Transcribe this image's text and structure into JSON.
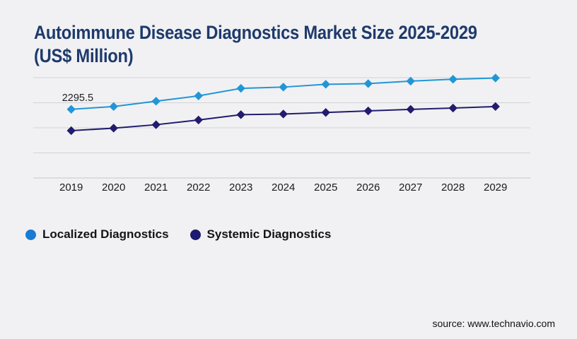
{
  "page": {
    "title": "Autoimmune Disease Diagnostics Market Size 2025-2029 (US$ Million)",
    "title_lines": [
      "Autoimmune Disease Diagnostics Market Size 2025-2029",
      "(US$ Million)"
    ],
    "source": "source: www.technavio.com"
  },
  "colors": {
    "background": "#f1f1f3",
    "title": "#1e3a6c",
    "gridline": "#d2d3d6",
    "axis_line": "#c6c7ca",
    "tick_text": "#1b1b1b",
    "localized_series": "#2196d6",
    "systemic_series": "#211c6e",
    "legend_localized_dot": "#187bd4",
    "legend_systemic_dot": "#1e1a70"
  },
  "legend": {
    "items": [
      {
        "label": "Localized Diagnostics",
        "color": "#187bd4"
      },
      {
        "label": "Systemic Diagnostics",
        "color": "#1e1a70"
      }
    ]
  },
  "chart_data": {
    "type": "line",
    "title": "Autoimmune Disease Diagnostics Market Size 2025-2029 (US$ Million)",
    "xlabel": "",
    "ylabel": "US$ Million",
    "categories": [
      2019,
      2020,
      2021,
      2022,
      2023,
      2024,
      2025,
      2026,
      2027,
      2028,
      2029
    ],
    "series": [
      {
        "name": "Localized Diagnostics",
        "color": "#2196d6",
        "marker": "diamond",
        "values": [
          2295.5,
          2340,
          2425,
          2510,
          2630,
          2650,
          2695,
          2705,
          2745,
          2775,
          2795
        ]
      },
      {
        "name": "Systemic Diagnostics",
        "color": "#211c6e",
        "marker": "diamond",
        "values": [
          1955,
          1995,
          2050,
          2125,
          2210,
          2220,
          2245,
          2270,
          2295,
          2315,
          2340
        ]
      }
    ],
    "annotations": [
      {
        "text": "2295.5",
        "series": "Localized Diagnostics",
        "category": 2019
      }
    ],
    "ylim": [
      1200,
      2800
    ],
    "gridline_step": 400,
    "grid": "horizontal",
    "y_axis_labels_visible": false,
    "legend_position": "bottom-left"
  }
}
